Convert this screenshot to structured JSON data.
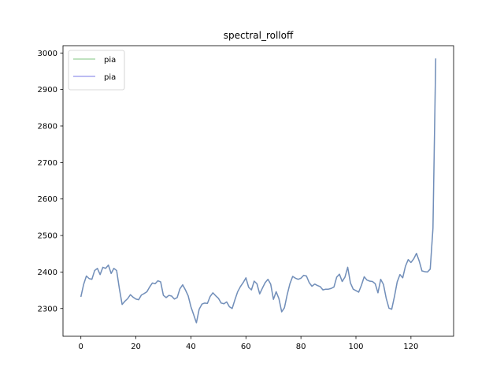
{
  "chart_data": {
    "type": "line",
    "title": "spectral_rolloff",
    "xlabel": "",
    "ylabel": "",
    "xlim": [
      -6.5,
      135.5
    ],
    "ylim": [
      2224,
      3020
    ],
    "xticks": [
      0,
      20,
      40,
      60,
      80,
      100,
      120
    ],
    "yticks": [
      2300,
      2400,
      2500,
      2600,
      2700,
      2800,
      2900,
      3000
    ],
    "grid": false,
    "legend_position": "upper-left",
    "series": [
      {
        "name": "pia",
        "color": "#2ca02c",
        "values": [
          2332,
          2366,
          2389,
          2382,
          2380,
          2404,
          2410,
          2393,
          2413,
          2410,
          2419,
          2396,
          2410,
          2404,
          2354,
          2311,
          2320,
          2327,
          2338,
          2331,
          2326,
          2324,
          2337,
          2341,
          2346,
          2359,
          2370,
          2368,
          2376,
          2373,
          2336,
          2330,
          2336,
          2334,
          2326,
          2330,
          2354,
          2365,
          2351,
          2335,
          2305,
          2283,
          2261,
          2298,
          2312,
          2315,
          2314,
          2333,
          2343,
          2335,
          2328,
          2315,
          2313,
          2318,
          2305,
          2300,
          2324,
          2346,
          2360,
          2371,
          2384,
          2358,
          2351,
          2375,
          2368,
          2340,
          2356,
          2371,
          2380,
          2367,
          2325,
          2346,
          2327,
          2291,
          2302,
          2338,
          2368,
          2388,
          2383,
          2380,
          2383,
          2391,
          2389,
          2371,
          2361,
          2367,
          2363,
          2360,
          2351,
          2353,
          2353,
          2355,
          2359,
          2386,
          2394,
          2374,
          2386,
          2413,
          2370,
          2353,
          2349,
          2345,
          2364,
          2387,
          2378,
          2375,
          2374,
          2368,
          2343,
          2380,
          2366,
          2328,
          2301,
          2298,
          2333,
          2373,
          2393,
          2384,
          2416,
          2434,
          2426,
          2436,
          2451,
          2430,
          2403,
          2401,
          2400,
          2408,
          2520,
          2985
        ]
      },
      {
        "name": "pia",
        "color": "#1f1fd4",
        "values": [
          2332,
          2366,
          2389,
          2382,
          2380,
          2404,
          2410,
          2393,
          2413,
          2410,
          2419,
          2396,
          2410,
          2404,
          2354,
          2311,
          2320,
          2327,
          2338,
          2331,
          2326,
          2324,
          2337,
          2341,
          2346,
          2359,
          2370,
          2368,
          2376,
          2373,
          2336,
          2330,
          2336,
          2334,
          2326,
          2330,
          2354,
          2365,
          2351,
          2335,
          2305,
          2283,
          2261,
          2298,
          2312,
          2315,
          2314,
          2333,
          2343,
          2335,
          2328,
          2315,
          2313,
          2318,
          2305,
          2300,
          2324,
          2346,
          2360,
          2371,
          2384,
          2358,
          2351,
          2375,
          2368,
          2340,
          2356,
          2371,
          2380,
          2367,
          2325,
          2346,
          2327,
          2291,
          2302,
          2338,
          2368,
          2388,
          2383,
          2380,
          2383,
          2391,
          2389,
          2371,
          2361,
          2367,
          2363,
          2360,
          2351,
          2353,
          2353,
          2355,
          2359,
          2386,
          2394,
          2374,
          2386,
          2413,
          2370,
          2353,
          2349,
          2345,
          2364,
          2387,
          2378,
          2375,
          2374,
          2368,
          2343,
          2380,
          2366,
          2328,
          2301,
          2298,
          2333,
          2373,
          2393,
          2384,
          2416,
          2434,
          2426,
          2436,
          2451,
          2430,
          2403,
          2401,
          2400,
          2408,
          2520,
          2985
        ]
      }
    ]
  }
}
